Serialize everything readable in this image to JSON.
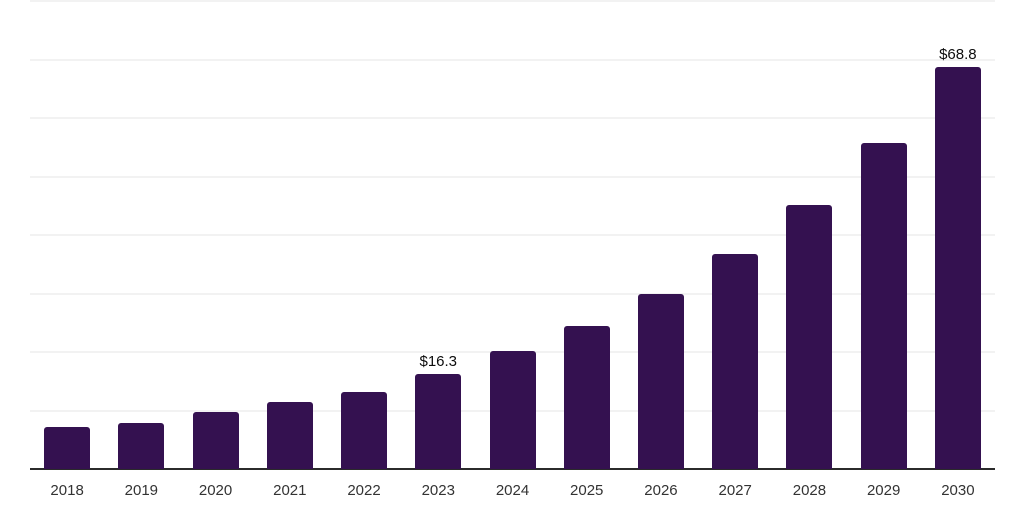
{
  "chart_data": {
    "type": "bar",
    "title": "",
    "xlabel": "",
    "ylabel": "",
    "categories": [
      "2018",
      "2019",
      "2020",
      "2021",
      "2022",
      "2023",
      "2024",
      "2025",
      "2026",
      "2027",
      "2028",
      "2029",
      "2030"
    ],
    "values": [
      7.1,
      7.9,
      9.7,
      11.4,
      13.2,
      16.3,
      20.1,
      24.4,
      30.0,
      36.7,
      45.2,
      55.8,
      68.8
    ],
    "data_labels": [
      {
        "category": "2023",
        "text": "$16.3"
      },
      {
        "category": "2030",
        "text": "$68.8"
      }
    ],
    "ylim": [
      0,
      80
    ],
    "gridline_step": 10,
    "grid": "horizontal",
    "legend_position": "none",
    "colors": {
      "bar": "#341150",
      "gridline": "#f2f2f2",
      "axis_line": "#2b2b2b",
      "tick_label": "#333333",
      "data_label": "#0d0d0d",
      "background": "#ffffff"
    }
  }
}
